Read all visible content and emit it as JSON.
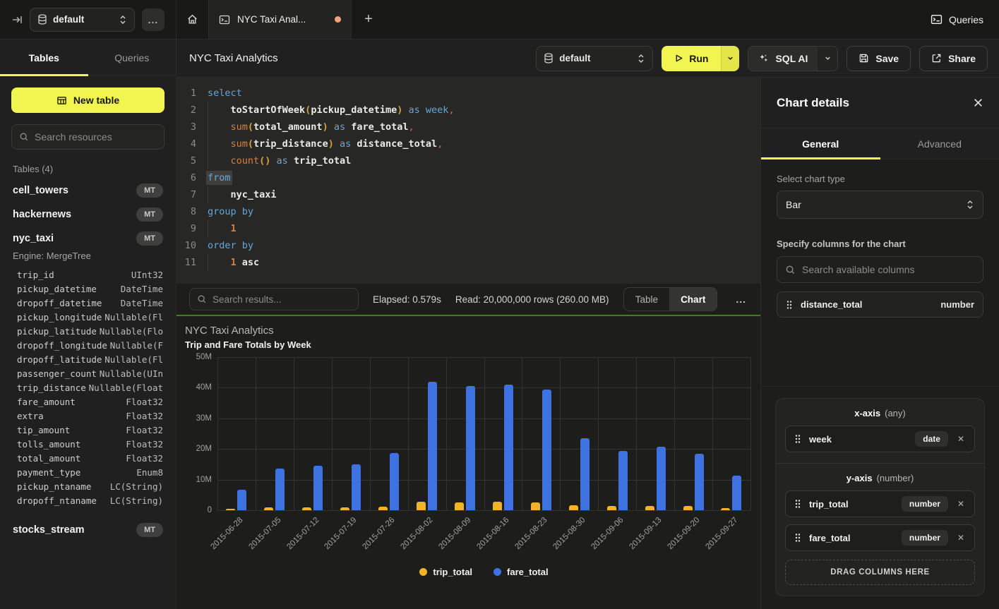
{
  "colors": {
    "accent_yellow": "#f2f44f",
    "chart_green_border": "#3f7d27",
    "tab_dot": "#f2a37c",
    "bar_yellow": "#f0b429",
    "bar_blue": "#3d72e0"
  },
  "topbar": {
    "database_selector": {
      "value": "default"
    },
    "more_label": "...",
    "tabs": {
      "active_tab": "NYC Taxi Anal...",
      "new_tab": "+"
    },
    "queries_label": "Queries"
  },
  "sidebar": {
    "tabs": [
      {
        "label": "Tables"
      },
      {
        "label": "Queries"
      }
    ],
    "new_table_label": "New table",
    "search_placeholder": "Search resources",
    "section_label": "Tables (4)",
    "tables": [
      {
        "name": "cell_towers",
        "badge": "MT"
      },
      {
        "name": "hackernews",
        "badge": "MT"
      },
      {
        "name": "nyc_taxi",
        "badge": "MT",
        "engine": "Engine: MergeTree"
      },
      {
        "name": "stocks_stream",
        "badge": "MT"
      }
    ],
    "nyc_taxi_columns": [
      [
        "trip_id",
        "UInt32"
      ],
      [
        "pickup_datetime",
        "DateTime"
      ],
      [
        "dropoff_datetime",
        "DateTime"
      ],
      [
        "pickup_longitude",
        "Nullable(Fl"
      ],
      [
        "pickup_latitude",
        "Nullable(Flo"
      ],
      [
        "dropoff_longitude",
        "Nullable(F"
      ],
      [
        "dropoff_latitude",
        "Nullable(Fl"
      ],
      [
        "passenger_count",
        "Nullable(UIn"
      ],
      [
        "trip_distance",
        "Nullable(Float"
      ],
      [
        "fare_amount",
        "Float32"
      ],
      [
        "extra",
        "Float32"
      ],
      [
        "tip_amount",
        "Float32"
      ],
      [
        "tolls_amount",
        "Float32"
      ],
      [
        "total_amount",
        "Float32"
      ],
      [
        "payment_type",
        "Enum8"
      ],
      [
        "pickup_ntaname",
        "LC(String)"
      ],
      [
        "dropoff_ntaname",
        "LC(String)"
      ]
    ]
  },
  "editor_header": {
    "title": "NYC Taxi Analytics",
    "database_selector": "default",
    "run_label": "Run",
    "sql_ai_label": "SQL AI",
    "save_label": "Save",
    "share_label": "Share"
  },
  "editor": {
    "lines": [
      [
        [
          "select",
          "kw"
        ]
      ],
      [
        [
          "",
          "ind"
        ],
        [
          "toStartOfWeek",
          "fn"
        ],
        [
          "(",
          "par"
        ],
        [
          "pickup_datetime",
          "id"
        ],
        [
          ")",
          "par"
        ],
        [
          " "
        ],
        [
          "as",
          "kw"
        ],
        [
          " "
        ],
        [
          "week",
          "kw"
        ],
        [
          ",",
          "com"
        ]
      ],
      [
        [
          "",
          "ind"
        ],
        [
          "sum",
          "agg"
        ],
        [
          "(",
          "par"
        ],
        [
          "total_amount",
          "id"
        ],
        [
          ")",
          "par"
        ],
        [
          " "
        ],
        [
          "as",
          "kw"
        ],
        [
          " "
        ],
        [
          "fare_total",
          "id"
        ],
        [
          ",",
          "com"
        ]
      ],
      [
        [
          "",
          "ind"
        ],
        [
          "sum",
          "agg"
        ],
        [
          "(",
          "par"
        ],
        [
          "trip_distance",
          "id"
        ],
        [
          ")",
          "par"
        ],
        [
          " "
        ],
        [
          "as",
          "kw"
        ],
        [
          " "
        ],
        [
          "distance_total",
          "id"
        ],
        [
          ",",
          "com"
        ]
      ],
      [
        [
          "",
          "ind"
        ],
        [
          "count",
          "agg"
        ],
        [
          "()",
          "par"
        ],
        [
          " "
        ],
        [
          "as",
          "kw"
        ],
        [
          " "
        ],
        [
          "trip_total",
          "id"
        ]
      ],
      [
        [
          "from",
          "kwsel"
        ]
      ],
      [
        [
          "",
          "ind"
        ],
        [
          "nyc_taxi",
          "id"
        ]
      ],
      [
        [
          "group by",
          "kw"
        ]
      ],
      [
        [
          "",
          "ind"
        ],
        [
          "1",
          "num"
        ]
      ],
      [
        [
          "order by",
          "kw"
        ]
      ],
      [
        [
          "",
          "ind"
        ],
        [
          "1",
          "num"
        ],
        [
          " "
        ],
        [
          "asc",
          "id"
        ]
      ]
    ]
  },
  "results_bar": {
    "search_placeholder": "Search results...",
    "elapsed": "Elapsed: 0.579s",
    "read": "Read: 20,000,000 rows (260.00 MB)",
    "view_toggle": [
      {
        "label": "Table"
      },
      {
        "label": "Chart"
      }
    ],
    "more_label": "..."
  },
  "chart_data": {
    "type": "bar",
    "title": "NYC Taxi Analytics",
    "subtitle": "Trip and Fare Totals by Week",
    "categories": [
      "2015-06-28",
      "2015-07-05",
      "2015-07-12",
      "2015-07-19",
      "2015-07-26",
      "2015-08-02",
      "2015-08-09",
      "2015-08-16",
      "2015-08-23",
      "2015-08-30",
      "2015-09-06",
      "2015-09-13",
      "2015-09-20",
      "2015-09-27"
    ],
    "series": [
      {
        "name": "trip_total",
        "color": "#f0b429",
        "values_millions": [
          0.5,
          0.9,
          0.9,
          0.9,
          1.1,
          2.7,
          2.6,
          2.8,
          2.5,
          1.6,
          1.4,
          1.4,
          1.4,
          0.7
        ]
      },
      {
        "name": "fare_total",
        "color": "#3d72e0",
        "values_millions": [
          6.8,
          13.5,
          14.5,
          14.9,
          18.6,
          42.0,
          40.6,
          41.1,
          39.3,
          23.4,
          19.3,
          20.7,
          18.5,
          11.3
        ]
      }
    ],
    "ylim_millions": [
      0,
      50
    ],
    "yticks": [
      "50M",
      "40M",
      "30M",
      "20M",
      "10M",
      "0"
    ],
    "grid": true,
    "legend_position": "bottom-center"
  },
  "chart_panel": {
    "title": "Chart details",
    "tabs": [
      {
        "label": "General"
      },
      {
        "label": "Advanced"
      }
    ],
    "chart_type_label": "Select chart type",
    "chart_type_value": "Bar",
    "columns_label": "Specify columns for the chart",
    "search_placeholder": "Search available columns",
    "available_columns": [
      {
        "name": "distance_total",
        "type": "number"
      }
    ],
    "x_axis": {
      "label": "x-axis",
      "hint": "(any)",
      "items": [
        {
          "name": "week",
          "type": "date"
        }
      ]
    },
    "y_axis": {
      "label": "y-axis",
      "hint": "(number)",
      "items": [
        {
          "name": "trip_total",
          "type": "number"
        },
        {
          "name": "fare_total",
          "type": "number"
        }
      ]
    },
    "drop_zone_label": "DRAG COLUMNS HERE"
  }
}
